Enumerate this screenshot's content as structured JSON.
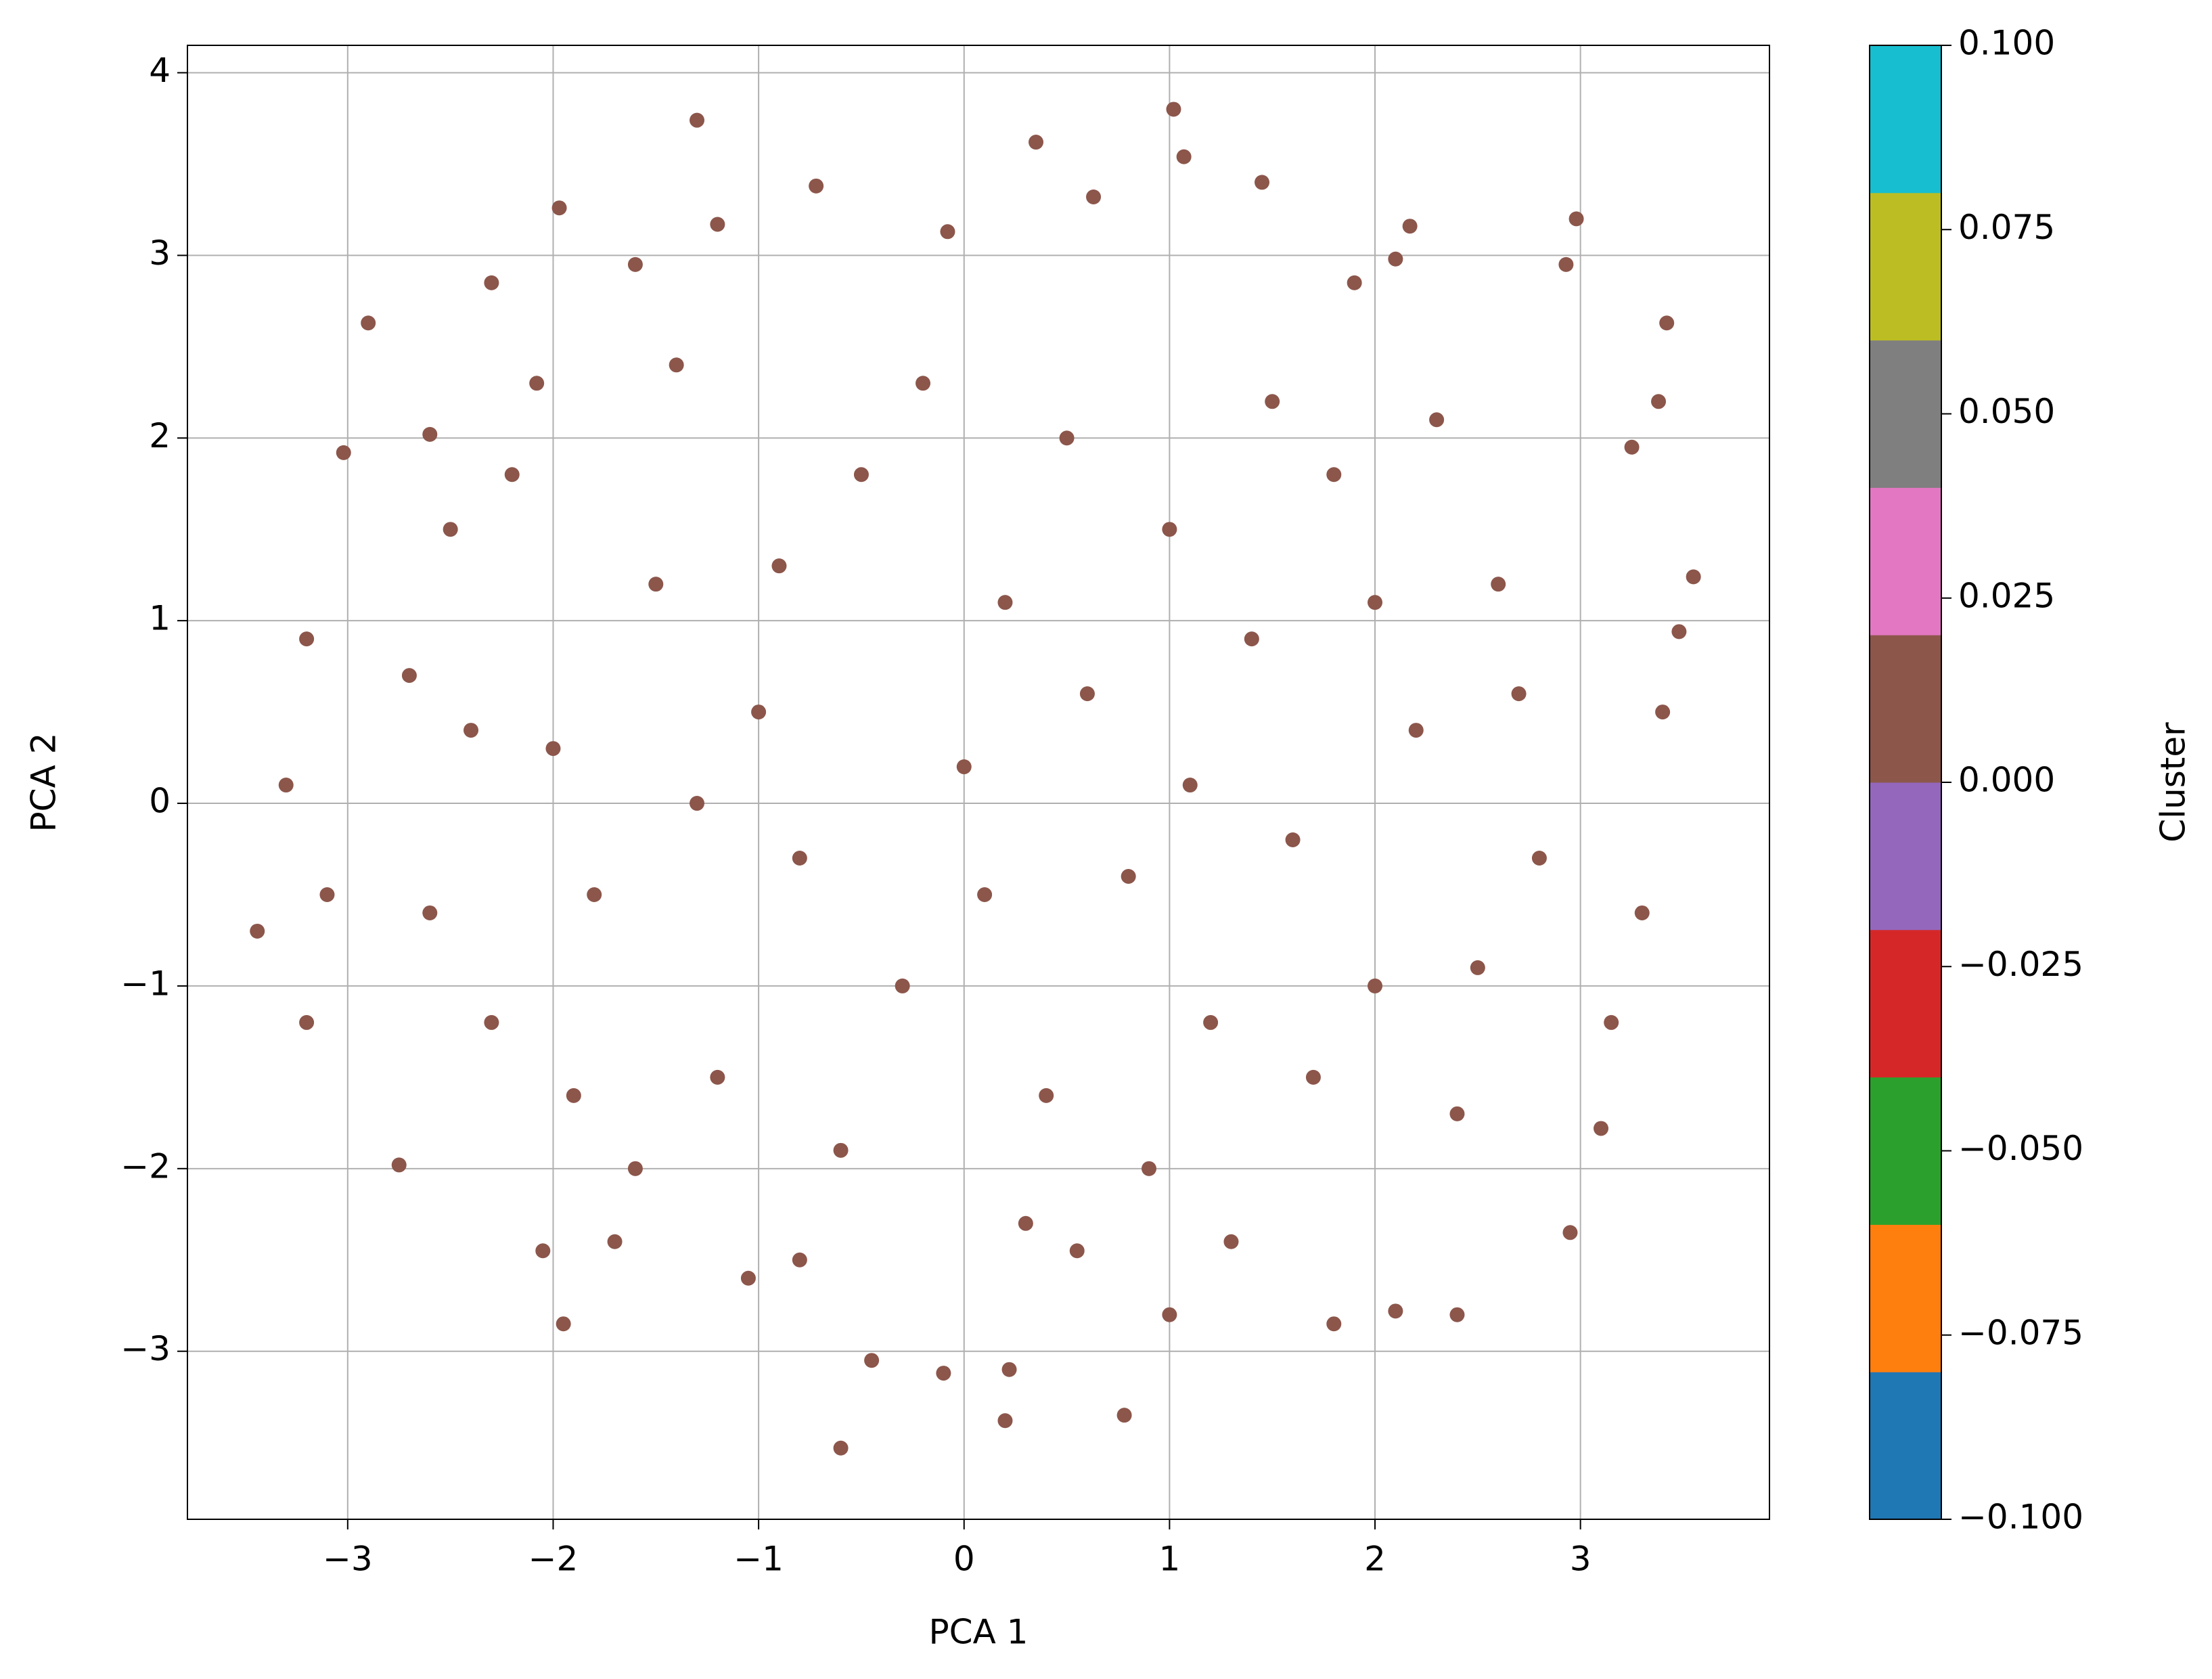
{
  "chart_data": {
    "type": "scatter",
    "x_label": "PCA 1",
    "y_label": "PCA 2",
    "xlim": [
      -3.78,
      3.92
    ],
    "ylim": [
      -3.92,
      4.15
    ],
    "xticks": [
      {
        "value": -3,
        "label": "−3"
      },
      {
        "value": -2,
        "label": "−2"
      },
      {
        "value": -1,
        "label": "−1"
      },
      0,
      1,
      2,
      3
    ],
    "yticks": [
      {
        "value": -3,
        "label": "−3"
      },
      {
        "value": -2,
        "label": "−2"
      },
      {
        "value": -1,
        "label": "−1"
      },
      0,
      1,
      2,
      3,
      4
    ],
    "grid": true,
    "series": [
      {
        "color": "#8c564b",
        "x": [
          -1.3,
          0.35,
          1.02,
          1.07,
          -0.6,
          0.2,
          0.78,
          -1.97,
          2.98,
          3.42,
          -2.9,
          -3.44,
          3.55,
          -1.95,
          -0.45,
          0.22,
          -0.1,
          1.45,
          -0.72,
          0.63,
          -1.2,
          -0.08,
          2.17,
          2.93,
          3.38,
          3.25,
          -3.02,
          -2.6,
          -2.3,
          -2.08,
          -1.6,
          1.9,
          2.1,
          -2.05,
          -1.7,
          -1.05,
          -0.8,
          0.55,
          1.0,
          1.8,
          2.1,
          2.4,
          2.95,
          3.1,
          3.15,
          3.3,
          3.4,
          3.48,
          -3.2,
          -3.1,
          -3.3,
          -3.2,
          -2.75,
          -2.7,
          -2.5,
          -2.3,
          -2.0,
          -1.8,
          -1.5,
          -1.2,
          -1.0,
          -0.8,
          -0.5,
          -0.3,
          0,
          0.2,
          0.4,
          0.6,
          0.8,
          1.0,
          1.2,
          1.4,
          1.6,
          1.8,
          2.0,
          2.2,
          2.4,
          2.6,
          2.8,
          -2.2,
          -1.6,
          -0.2,
          0.9,
          1.5,
          2.5,
          -2.6,
          -1.3,
          0.1,
          1.1,
          2.0,
          -0.6,
          0.5,
          -1.9,
          1.7,
          2.7,
          -2.4,
          -0.9,
          0.3,
          1.3,
          -1.4,
          2.3
        ],
        "y": [
          3.74,
          3.62,
          3.8,
          3.54,
          -3.53,
          -3.38,
          -3.35,
          3.26,
          3.2,
          2.63,
          2.63,
          -0.7,
          1.24,
          -2.85,
          -3.05,
          -3.1,
          -3.12,
          3.4,
          3.38,
          3.32,
          3.17,
          3.13,
          3.16,
          2.95,
          2.2,
          1.95,
          1.92,
          2.02,
          2.85,
          2.3,
          2.95,
          2.85,
          2.98,
          -2.45,
          -2.4,
          -2.6,
          -2.5,
          -2.45,
          -2.8,
          -2.85,
          -2.78,
          -2.8,
          -2.35,
          -1.78,
          -1.2,
          -0.6,
          0.5,
          0.94,
          -1.2,
          -0.5,
          0.1,
          0.9,
          -1.98,
          0.7,
          1.5,
          -1.2,
          0.3,
          -0.5,
          1.2,
          -1.5,
          0.5,
          -0.3,
          1.8,
          -1.0,
          0.2,
          1.1,
          -1.6,
          0.6,
          -0.4,
          1.5,
          -1.2,
          0.9,
          -0.2,
          1.8,
          -1.0,
          0.4,
          -1.7,
          1.2,
          -0.3,
          1.8,
          -2.0,
          2.3,
          -2.0,
          2.2,
          -0.9,
          -0.6,
          0.0,
          -0.5,
          0.1,
          1.1,
          -1.9,
          2.0,
          -1.6,
          -1.5,
          0.6,
          0.4,
          1.3,
          -2.3,
          -2.4,
          2.4,
          2.1
        ]
      }
    ],
    "colorbar": {
      "label": "Cluster",
      "lim": [
        -0.1,
        0.1
      ],
      "colors": [
        "#1f77b4",
        "#ff7f0e",
        "#2ca02c",
        "#d62728",
        "#9467bd",
        "#8c564b",
        "#e377c2",
        "#7f7f7f",
        "#bcbd22",
        "#17becf"
      ],
      "ticks": [
        {
          "value": -0.1,
          "label": "−0.100"
        },
        {
          "value": -0.075,
          "label": "−0.075"
        },
        {
          "value": -0.05,
          "label": "−0.050"
        },
        {
          "value": -0.025,
          "label": "−0.025"
        },
        {
          "value": 0,
          "label": "0.000"
        },
        {
          "value": 0.025,
          "label": "0.025"
        },
        {
          "value": 0.05,
          "label": "0.050"
        },
        {
          "value": 0.075,
          "label": "0.075"
        },
        {
          "value": 0.1,
          "label": "0.100"
        }
      ]
    }
  }
}
